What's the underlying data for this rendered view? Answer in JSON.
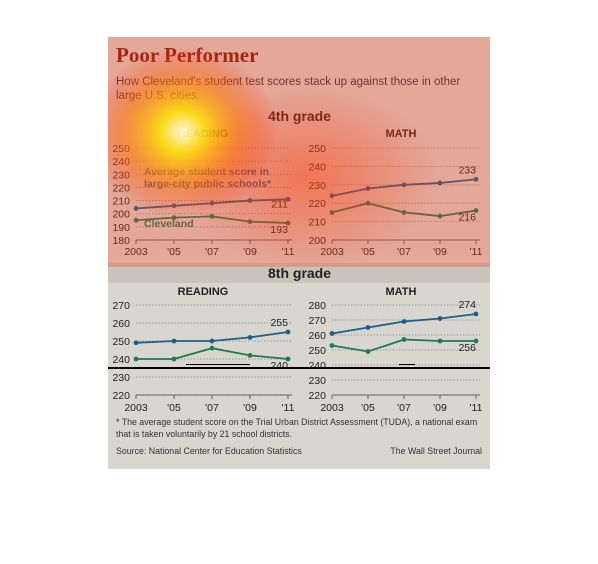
{
  "header": {
    "title": "Poor Performer",
    "subtitle": "How Cleveland's student test scores stack up against those in other large U.S. cities."
  },
  "grades": {
    "g4": "4th grade",
    "g8": "8th grade"
  },
  "annotations": {
    "avg_label": "Average student score in large-city public schools*",
    "cleveland_label": "Cleveland"
  },
  "footer": {
    "footnote": "* The average student score on the Trial Urban District Assessment (TUDA), a national exam that is taken voluntarily by 21 school districts.",
    "source": "Source: National Center for Education Statistics",
    "credit": "The Wall Street Journal"
  },
  "colors": {
    "large_city": "#1e5f8c",
    "cleveland": "#1f7a52",
    "heatmap": "#ff2a00"
  },
  "chart_data": [
    {
      "type": "line",
      "grade": "4th grade",
      "title": "READING",
      "categories": [
        "2003",
        "'05",
        "'07",
        "'09",
        "'11"
      ],
      "ylim": [
        180,
        250
      ],
      "yticks": [
        180,
        190,
        200,
        210,
        220,
        230,
        240,
        250
      ],
      "series": [
        {
          "name": "Average student score in large-city public schools*",
          "color": "#1e5f8c",
          "values": [
            204,
            206,
            208,
            210,
            211
          ],
          "end_label": "211"
        },
        {
          "name": "Cleveland",
          "color": "#1f7a52",
          "values": [
            195,
            197,
            198,
            194,
            193
          ],
          "end_label": "193"
        }
      ]
    },
    {
      "type": "line",
      "grade": "4th grade",
      "title": "MATH",
      "categories": [
        "2003",
        "'05",
        "'07",
        "'09",
        "'11"
      ],
      "ylim": [
        200,
        250
      ],
      "yticks": [
        200,
        210,
        220,
        230,
        240,
        250
      ],
      "series": [
        {
          "name": "Large-city",
          "color": "#1e5f8c",
          "values": [
            224,
            228,
            230,
            231,
            233
          ],
          "end_label": "233"
        },
        {
          "name": "Cleveland",
          "color": "#1f7a52",
          "values": [
            215,
            220,
            215,
            213,
            216
          ],
          "end_label": "216"
        }
      ]
    },
    {
      "type": "line",
      "grade": "8th grade",
      "title": "READING",
      "categories": [
        "2003",
        "'05",
        "'07",
        "'09",
        "'11"
      ],
      "ylim": [
        220,
        270
      ],
      "yticks": [
        220,
        230,
        240,
        250,
        260,
        270
      ],
      "series": [
        {
          "name": "Large-city",
          "color": "#1e5f8c",
          "values": [
            249,
            250,
            250,
            252,
            255
          ],
          "end_label": "255"
        },
        {
          "name": "Cleveland",
          "color": "#1f7a52",
          "values": [
            240,
            240,
            246,
            242,
            240
          ],
          "end_label": "240"
        }
      ]
    },
    {
      "type": "line",
      "grade": "8th grade",
      "title": "MATH",
      "categories": [
        "2003",
        "'05",
        "'07",
        "'09",
        "'11"
      ],
      "ylim": [
        220,
        280
      ],
      "yticks": [
        220,
        230,
        240,
        250,
        260,
        270,
        280
      ],
      "series": [
        {
          "name": "Large-city",
          "color": "#1e5f8c",
          "values": [
            261,
            265,
            269,
            271,
            274
          ],
          "end_label": "274"
        },
        {
          "name": "Cleveland",
          "color": "#1f7a52",
          "values": [
            253,
            249,
            257,
            256,
            256
          ],
          "end_label": "256"
        }
      ]
    }
  ]
}
